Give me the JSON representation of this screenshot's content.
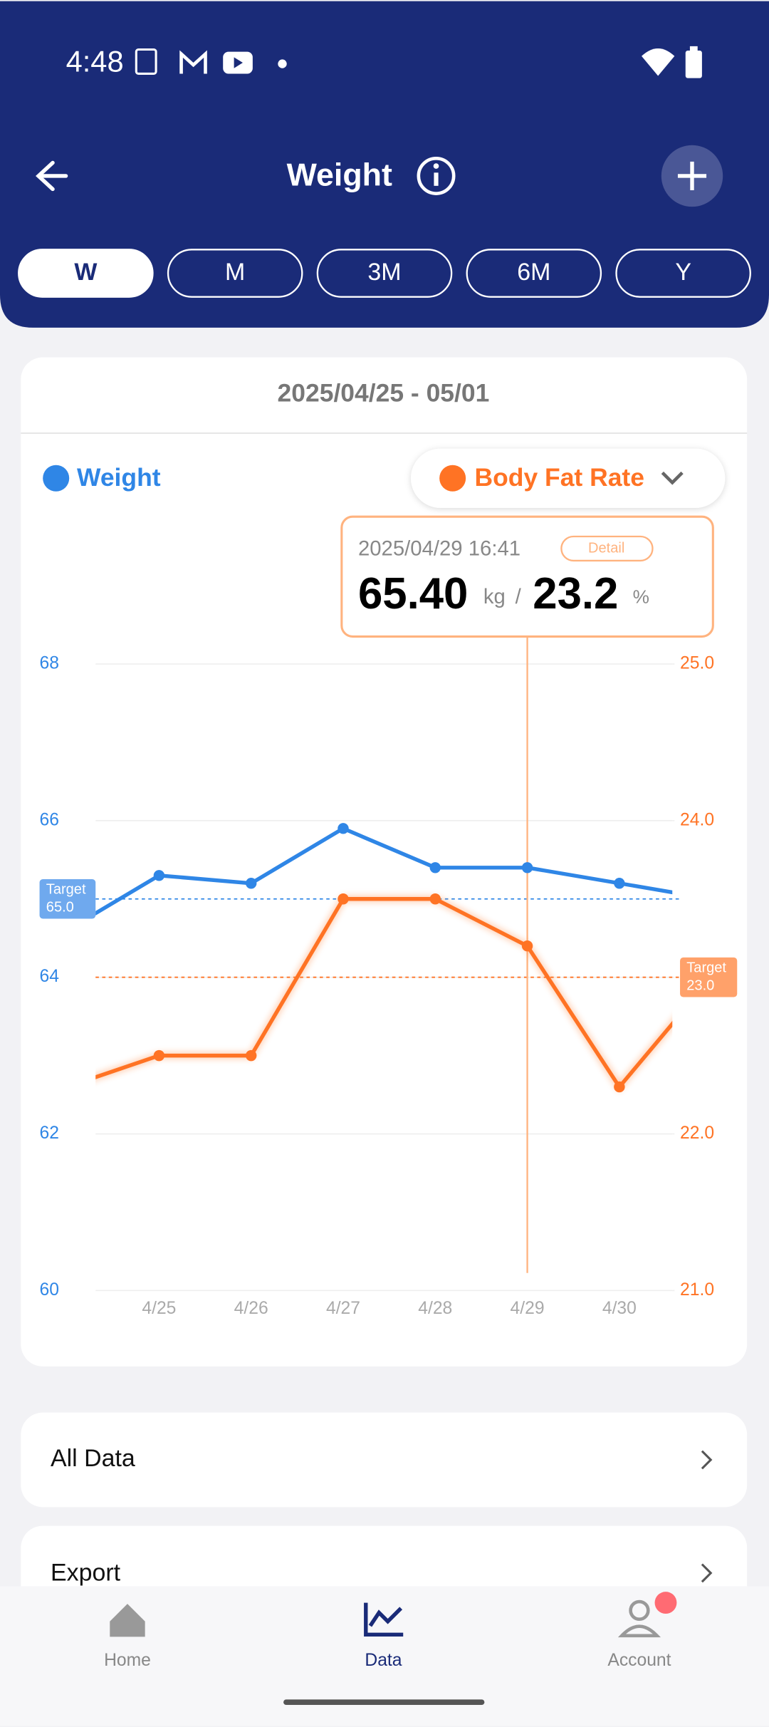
{
  "status_bar": {
    "time": "4:48"
  },
  "header": {
    "title": "Weight"
  },
  "tabs": [
    "W",
    "M",
    "3M",
    "6M",
    "Y"
  ],
  "date_range": "2025/04/25 - 05/01",
  "chart": {
    "type": "line",
    "categories": [
      null,
      "4/25",
      "4/26",
      "4/27",
      "4/28",
      "4/29",
      "4/30",
      null
    ],
    "series": [
      {
        "name": "Weight",
        "color": "#2f86e6",
        "values": [
          64.6,
          65.3,
          65.2,
          65.9,
          65.4,
          65.4,
          65.2,
          65.0
        ]
      },
      {
        "name": "Body Fat Rate",
        "color": "#ff7324",
        "axis": "y2",
        "values": [
          22.3,
          22.5,
          22.5,
          23.5,
          23.5,
          23.2,
          22.3,
          23.0
        ]
      }
    ],
    "ylim": [
      60,
      68
    ],
    "yticks": [
      60,
      62,
      64,
      66,
      68
    ],
    "y2lim": [
      21,
      25
    ],
    "y2ticks": [
      {
        "value": 21,
        "label": "21.0"
      },
      {
        "value": 22,
        "label": "22.0"
      },
      {
        "value": 23,
        "label": "23.0"
      },
      {
        "value": 24,
        "label": "24.0"
      },
      {
        "value": 25,
        "label": "25.0"
      }
    ],
    "grid": true,
    "targets": [
      {
        "label": "Target",
        "value": 65,
        "value_label": "65.0"
      },
      {
        "label": "Target",
        "value": 23,
        "value_label": "23.0"
      }
    ],
    "tooltip": {
      "datetime": "2025/04/29 16:41",
      "button": "Detail",
      "weight": "65.40",
      "weight_unit": "kg",
      "separator": "/",
      "fat": "23.2",
      "fat_unit": "%"
    }
  },
  "list": [
    "All Data",
    "Export"
  ],
  "nav": [
    "Home",
    "Data",
    "Account"
  ]
}
